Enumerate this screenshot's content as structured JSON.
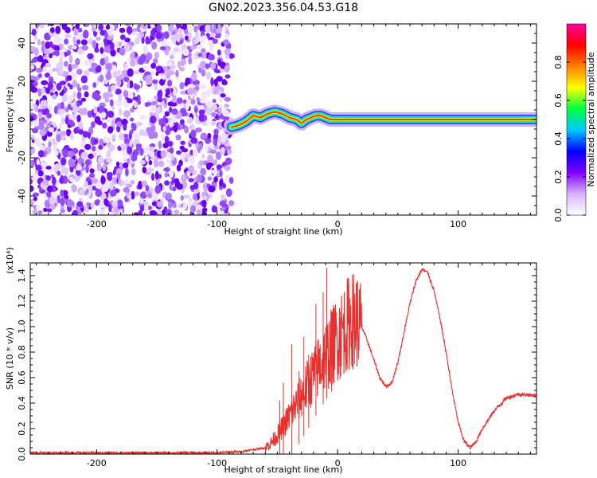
{
  "title": "GN02.2023.356.04.53.G18",
  "chart_data": [
    {
      "type": "heatmap",
      "xlabel": "Height of straight line (km)",
      "ylabel": "Frequency (Hz)",
      "xlim": [
        -255,
        165
      ],
      "ylim": [
        -50,
        50
      ],
      "x_ticks": [
        -200,
        -100,
        0,
        100
      ],
      "y_ticks": [
        -40,
        -20,
        0,
        20,
        40
      ],
      "noise_region_x": [
        -255,
        -88
      ],
      "ridge": {
        "x": [
          -88,
          -82,
          -76,
          -70,
          -64,
          -58,
          -52,
          -46,
          -40,
          -34,
          -30,
          -26,
          -22,
          -18,
          -14,
          -10,
          -6,
          -2,
          0,
          20,
          40,
          60,
          80,
          100,
          120,
          140,
          165
        ],
        "y": [
          -4,
          -3,
          -1,
          2,
          1,
          3,
          4,
          3,
          1,
          0,
          -2,
          0,
          1,
          2,
          2,
          1,
          0,
          0,
          0,
          0,
          0,
          0,
          0,
          0,
          0,
          0,
          0
        ]
      },
      "colorbar": {
        "label": "Normalized spectral amplitude",
        "range": [
          0,
          1
        ],
        "ticks": [
          "0.0",
          "0.2",
          "0.4",
          "0.6",
          "0.8"
        ],
        "colors": [
          "#ffffff",
          "#d9b3ff",
          "#8000ff",
          "#0000ff",
          "#00c8ff",
          "#00ff40",
          "#ffff00",
          "#ff8000",
          "#ff0000",
          "#ff00a0"
        ]
      }
    },
    {
      "type": "line",
      "xlabel": "Height of straight line (km)",
      "ylabel": "SNR (10 * v/v)",
      "y_multiplier": "(x10⁴)",
      "xlim": [
        -255,
        165
      ],
      "ylim": [
        0,
        1.5
      ],
      "x_ticks": [
        -200,
        -100,
        0,
        100
      ],
      "y_ticks": [
        "0.0",
        "0.2",
        "0.4",
        "0.6",
        "0.8",
        "1.0",
        "1.2",
        "1.4"
      ],
      "color": "#e8302e",
      "series": [
        {
          "x": [
            -255,
            -200,
            -150,
            -100,
            -80,
            -60,
            -55,
            -50,
            -45,
            -40,
            -35,
            -30,
            -25,
            -20,
            -15,
            -10,
            -5,
            0,
            5,
            10,
            15,
            20,
            25,
            30,
            35,
            40,
            45,
            50,
            55,
            60,
            65,
            70,
            75,
            80,
            85,
            90,
            95,
            100,
            105,
            110,
            115,
            120,
            130,
            140,
            150,
            165
          ],
          "y": [
            0.01,
            0.01,
            0.01,
            0.01,
            0.02,
            0.05,
            0.09,
            0.15,
            0.22,
            0.3,
            0.38,
            0.46,
            0.54,
            0.62,
            0.7,
            0.77,
            0.84,
            0.91,
            0.98,
            1.04,
            1.06,
            1.0,
            0.88,
            0.74,
            0.6,
            0.53,
            0.56,
            0.72,
            0.95,
            1.18,
            1.36,
            1.45,
            1.42,
            1.28,
            1.06,
            0.8,
            0.5,
            0.25,
            0.1,
            0.05,
            0.1,
            0.2,
            0.34,
            0.44,
            0.47,
            0.46
          ]
        }
      ],
      "spikes": [
        {
          "x": -48,
          "y": 0.42
        },
        {
          "x": -45,
          "y": 0.56
        },
        {
          "x": -38,
          "y": 0.86
        },
        {
          "x": -32,
          "y": 0.65
        },
        {
          "x": -28,
          "y": 0.92
        },
        {
          "x": -24,
          "y": 0.78
        },
        {
          "x": -18,
          "y": 1.18
        },
        {
          "x": -12,
          "y": 1.27
        },
        {
          "x": -9,
          "y": 1.46
        },
        {
          "x": -5,
          "y": 1.02
        },
        {
          "x": 2,
          "y": 1.12
        },
        {
          "x": 8,
          "y": 1.18
        },
        {
          "x": 14,
          "y": 1.2
        }
      ]
    }
  ]
}
